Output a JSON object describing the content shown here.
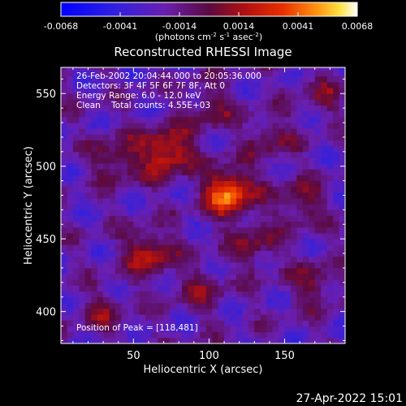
{
  "colorbar": {
    "ticks": [
      "-0.0068",
      "-0.0041",
      "-0.0014",
      "0.0014",
      "0.0041",
      "0.0068"
    ],
    "units": "(photons cm",
    "units_exp1": "-2",
    "units_mid": " s",
    "units_exp2": "-1",
    "units_mid2": " asec",
    "units_exp3": "-2",
    "units_end": ")",
    "range": [
      -0.0068,
      0.0068
    ]
  },
  "chart_data": {
    "type": "heatmap",
    "title": "Reconstructed RHESSI Image",
    "xlabel": "Heliocentric X (arcsec)",
    "ylabel": "Heliocentric Y (arcsec)",
    "xlim": [
      2,
      190
    ],
    "ylim": [
      378,
      568
    ],
    "x_ticks": [
      50,
      100,
      150
    ],
    "y_ticks": [
      400,
      450,
      500,
      550
    ],
    "info_lines": [
      "26-Feb-2002 20:04:44.000 to 20:05:36.000",
      "Detectors: 3F 4F 5F 6F 7F 8F, Att 0",
      "Energy Range: 6.0 - 12.0 keV",
      "Clean    Total counts: 4.55E+03"
    ],
    "peak_label": "Position of Peak = [118,481]",
    "peak_position": [
      118,
      481
    ],
    "sources": [
      {
        "x": 113,
        "y": 482,
        "amplitude": 0.0068
      },
      {
        "x": 72,
        "y": 510,
        "amplitude": 0.0052
      },
      {
        "x": 60,
        "y": 440,
        "amplitude": 0.004
      },
      {
        "x": 40,
        "y": 505,
        "amplitude": 0.003
      },
      {
        "x": 160,
        "y": 475,
        "amplitude": 0.0028
      },
      {
        "x": 140,
        "y": 520,
        "amplitude": 0.0024
      },
      {
        "x": 130,
        "y": 445,
        "amplitude": 0.0026
      },
      {
        "x": 95,
        "y": 415,
        "amplitude": 0.0022
      },
      {
        "x": 170,
        "y": 420,
        "amplitude": 0.0025
      },
      {
        "x": 30,
        "y": 400,
        "amplitude": 0.002
      },
      {
        "x": 100,
        "y": 540,
        "amplitude": 0.0024
      },
      {
        "x": 175,
        "y": 550,
        "amplitude": 0.0018
      }
    ],
    "colormap": "blue-purple-red-yellow-white"
  },
  "timestamp": "27-Apr-2022 15:01"
}
